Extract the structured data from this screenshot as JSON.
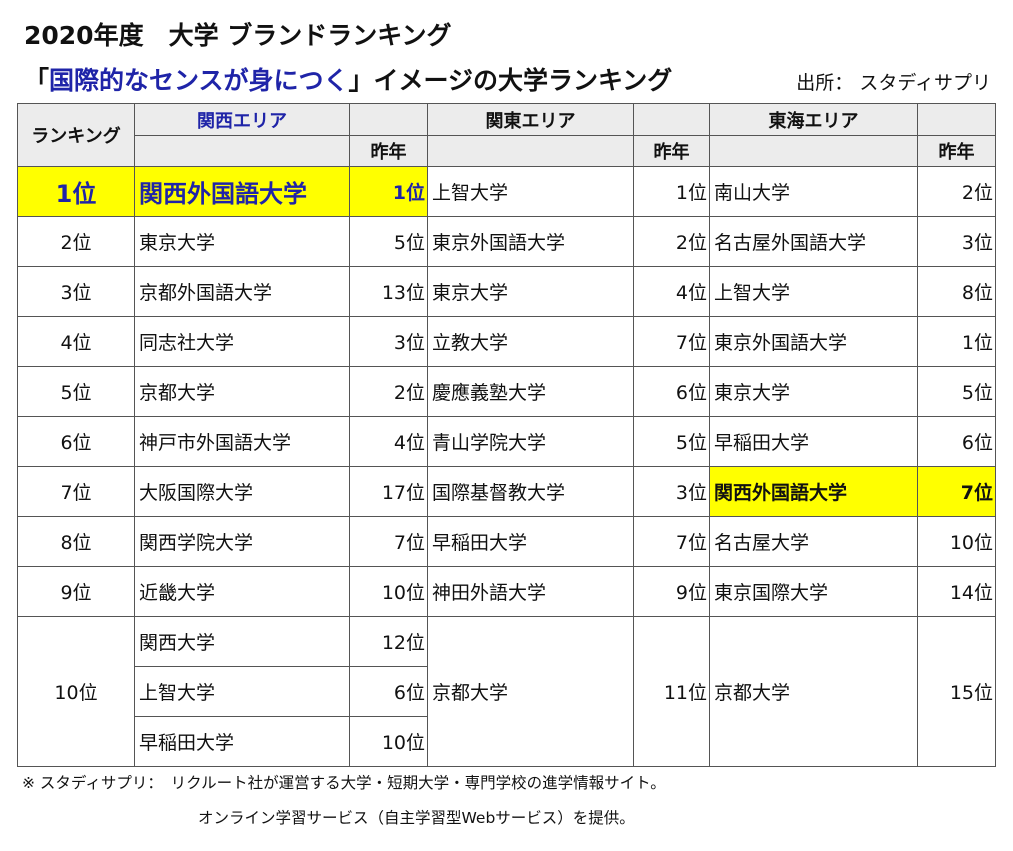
{
  "title": "2020年度　大学 ブランドランキング",
  "subtitle": {
    "open": "「",
    "highlight": "国際的なセンスが身につく",
    "close": "」イメージの大学ランキング"
  },
  "source": "出所： スタディサプリ",
  "table": {
    "headers": {
      "rank": "ランキング",
      "kansai": "関西エリア",
      "kanto": "関東エリア",
      "tokai": "東海エリア",
      "prev": "昨年"
    },
    "rows": [
      {
        "rank": "1位",
        "kansai": {
          "name": "関西外国語大学",
          "prev": "1位"
        },
        "kanto": {
          "name": "上智大学",
          "prev": "1位"
        },
        "tokai": {
          "name": "南山大学",
          "prev": "2位"
        }
      },
      {
        "rank": "2位",
        "kansai": {
          "name": "東京大学",
          "prev": "5位"
        },
        "kanto": {
          "name": "東京外国語大学",
          "prev": "2位"
        },
        "tokai": {
          "name": "名古屋外国語大学",
          "prev": "3位"
        }
      },
      {
        "rank": "3位",
        "kansai": {
          "name": "京都外国語大学",
          "prev": "13位"
        },
        "kanto": {
          "name": "東京大学",
          "prev": "4位"
        },
        "tokai": {
          "name": "上智大学",
          "prev": "8位"
        }
      },
      {
        "rank": "4位",
        "kansai": {
          "name": "同志社大学",
          "prev": "3位"
        },
        "kanto": {
          "name": "立教大学",
          "prev": "7位"
        },
        "tokai": {
          "name": "東京外国語大学",
          "prev": "1位"
        }
      },
      {
        "rank": "5位",
        "kansai": {
          "name": "京都大学",
          "prev": "2位"
        },
        "kanto": {
          "name": "慶應義塾大学",
          "prev": "6位"
        },
        "tokai": {
          "name": "東京大学",
          "prev": "5位"
        }
      },
      {
        "rank": "6位",
        "kansai": {
          "name": "神戸市外国語大学",
          "prev": "4位"
        },
        "kanto": {
          "name": "青山学院大学",
          "prev": "5位"
        },
        "tokai": {
          "name": "早稲田大学",
          "prev": "6位"
        }
      },
      {
        "rank": "7位",
        "kansai": {
          "name": "大阪国際大学",
          "prev": "17位"
        },
        "kanto": {
          "name": "国際基督教大学",
          "prev": "3位"
        },
        "tokai": {
          "name": "関西外国語大学",
          "prev": "7位"
        }
      },
      {
        "rank": "8位",
        "kansai": {
          "name": "関西学院大学",
          "prev": "7位"
        },
        "kanto": {
          "name": "早稲田大学",
          "prev": "7位"
        },
        "tokai": {
          "name": "名古屋大学",
          "prev": "10位"
        }
      },
      {
        "rank": "9位",
        "kansai": {
          "name": "近畿大学",
          "prev": "10位"
        },
        "kanto": {
          "name": "神田外語大学",
          "prev": "9位"
        },
        "tokai": {
          "name": "東京国際大学",
          "prev": "14位"
        }
      }
    ],
    "tenth": {
      "rank": "10位",
      "kansai": [
        {
          "name": "関西大学",
          "prev": "12位"
        },
        {
          "name": "上智大学",
          "prev": "6位"
        },
        {
          "name": "早稲田大学",
          "prev": "10位"
        }
      ],
      "kanto": {
        "name": "京都大学",
        "prev": "11位"
      },
      "tokai": {
        "name": "京都大学",
        "prev": "15位"
      }
    }
  },
  "notes": {
    "line1": "※ スタディサプリ：　リクルート社が運営する大学・短期大学・専門学校の進学情報サイト。",
    "line2": "オンライン学習サービス（自主学習型Webサービス）を提供。"
  },
  "colors": {
    "highlight_bg": "#ffff00",
    "accent_blue": "#1f24a8",
    "header_bg": "#ececec"
  }
}
